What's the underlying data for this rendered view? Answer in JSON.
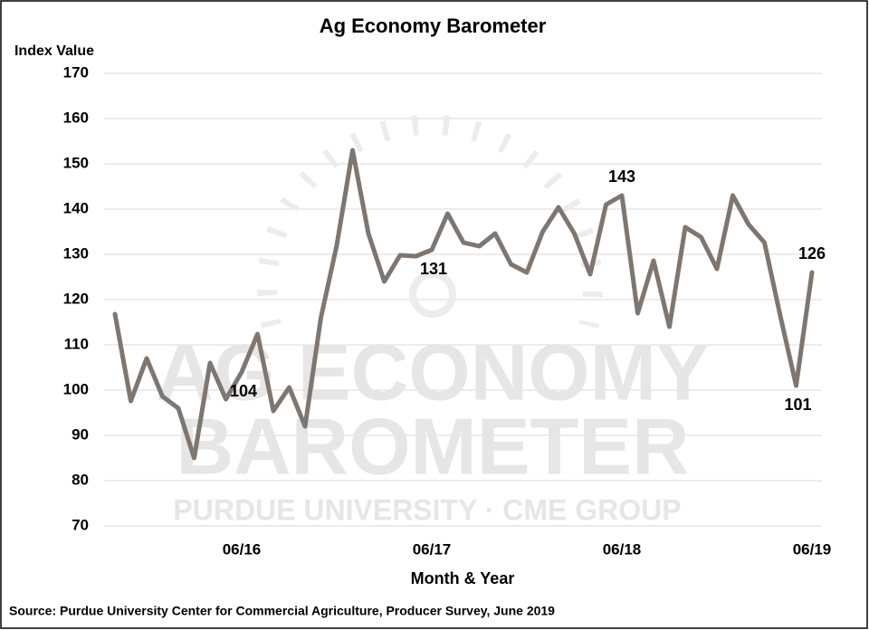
{
  "chart_data": {
    "type": "line",
    "title": "Ag Economy Barometer",
    "y_label": "Index Value",
    "x_label": "Month & Year",
    "source": "Source: Purdue University Center for Commercial Agriculture, Producer Survey, June 2019",
    "watermark": [
      "AG ECONOMY",
      "BAROMETER",
      "PURDUE UNIVERSITY  ·  CME GROUP"
    ],
    "categories": [
      null,
      null,
      null,
      null,
      null,
      null,
      null,
      null,
      "06/16",
      null,
      null,
      null,
      null,
      null,
      null,
      null,
      null,
      null,
      null,
      null,
      "06/17",
      null,
      null,
      null,
      null,
      null,
      null,
      null,
      null,
      null,
      null,
      null,
      "06/18",
      null,
      null,
      null,
      null,
      null,
      null,
      null,
      null,
      null,
      null,
      null,
      "06/19"
    ],
    "series": [
      {
        "name": "Index Value",
        "color": "#7d7671",
        "values": [
          116.8,
          97.6,
          107,
          98.6,
          96,
          85,
          106,
          98,
          104,
          112.4,
          95.4,
          100.6,
          92,
          116,
          132,
          153,
          134.6,
          124,
          129.8,
          129.6,
          131,
          139,
          132.6,
          131.8,
          134.6,
          127.8,
          126,
          135,
          140.4,
          134.6,
          125.6,
          141,
          143,
          117,
          128.6,
          114,
          136,
          133.8,
          126.8,
          143,
          136.6,
          132.6,
          116.4,
          101,
          126
        ]
      }
    ],
    "labeled_points": [
      8,
      20,
      32,
      43,
      44
    ],
    "ylim": [
      70,
      170
    ],
    "yticks": [
      70,
      80,
      90,
      100,
      110,
      120,
      130,
      140,
      150,
      160,
      170
    ],
    "grid": true
  }
}
